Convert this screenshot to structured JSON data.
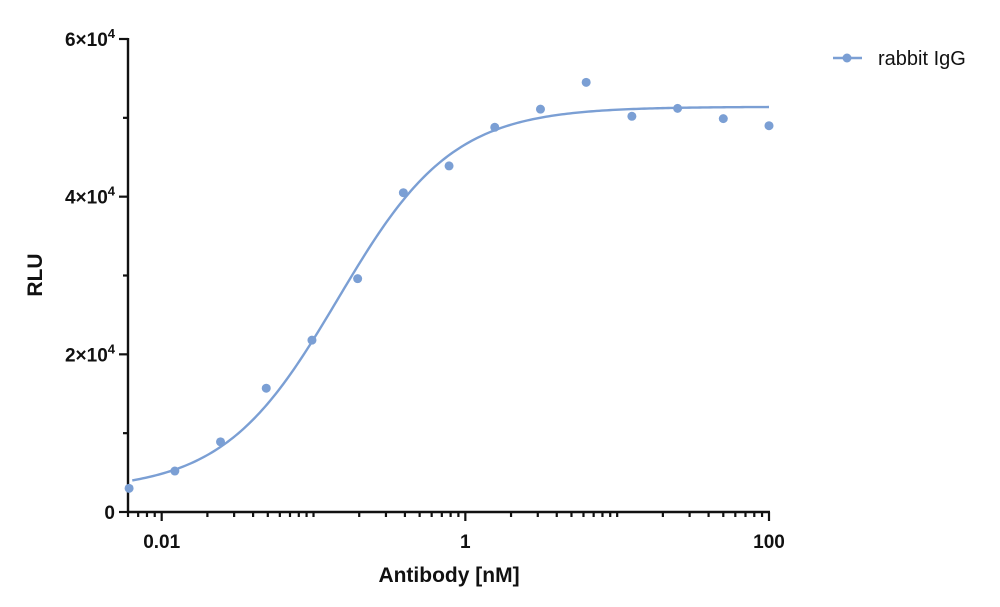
{
  "chart_data": {
    "type": "scatter",
    "title": "",
    "xlabel": "Antibody [nM]",
    "ylabel": "RLU",
    "xscale": "log",
    "xlim": [
      0.006,
      100
    ],
    "ylim": [
      0,
      60000
    ],
    "x_ticks": [
      {
        "value": 0.01,
        "label": "0.01"
      },
      {
        "value": 1,
        "label": "1"
      },
      {
        "value": 100,
        "label": "100"
      }
    ],
    "y_ticks": [
      {
        "value": 0,
        "label": "0",
        "base": "0",
        "exp": ""
      },
      {
        "value": 20000,
        "label": "2×10^4",
        "base": "2×10",
        "exp": "4"
      },
      {
        "value": 40000,
        "label": "4×10^4",
        "base": "4×10",
        "exp": "4"
      },
      {
        "value": 60000,
        "label": "6×10^4",
        "base": "6×10",
        "exp": "4"
      }
    ],
    "y_minor_ticks": [
      10000,
      30000,
      50000
    ],
    "legend_position": "top-right",
    "grid": false,
    "series": [
      {
        "name": "rabbit IgG",
        "color": "#7b9fd4",
        "x": [
          0.0061,
          0.01221,
          0.02441,
          0.04883,
          0.09766,
          0.19531,
          0.39063,
          0.78125,
          1.5625,
          3.125,
          6.25,
          12.5,
          25,
          50,
          100
        ],
        "y": [
          3000,
          5200,
          8900,
          15700,
          21800,
          29600,
          40500,
          43900,
          48800,
          51100,
          54500,
          50200,
          51200,
          49900,
          49000
        ],
        "fit": {
          "model": "4PL",
          "bottom": 2700,
          "top": 51400,
          "ec50": 0.145,
          "hill": 1.15
        }
      }
    ]
  }
}
